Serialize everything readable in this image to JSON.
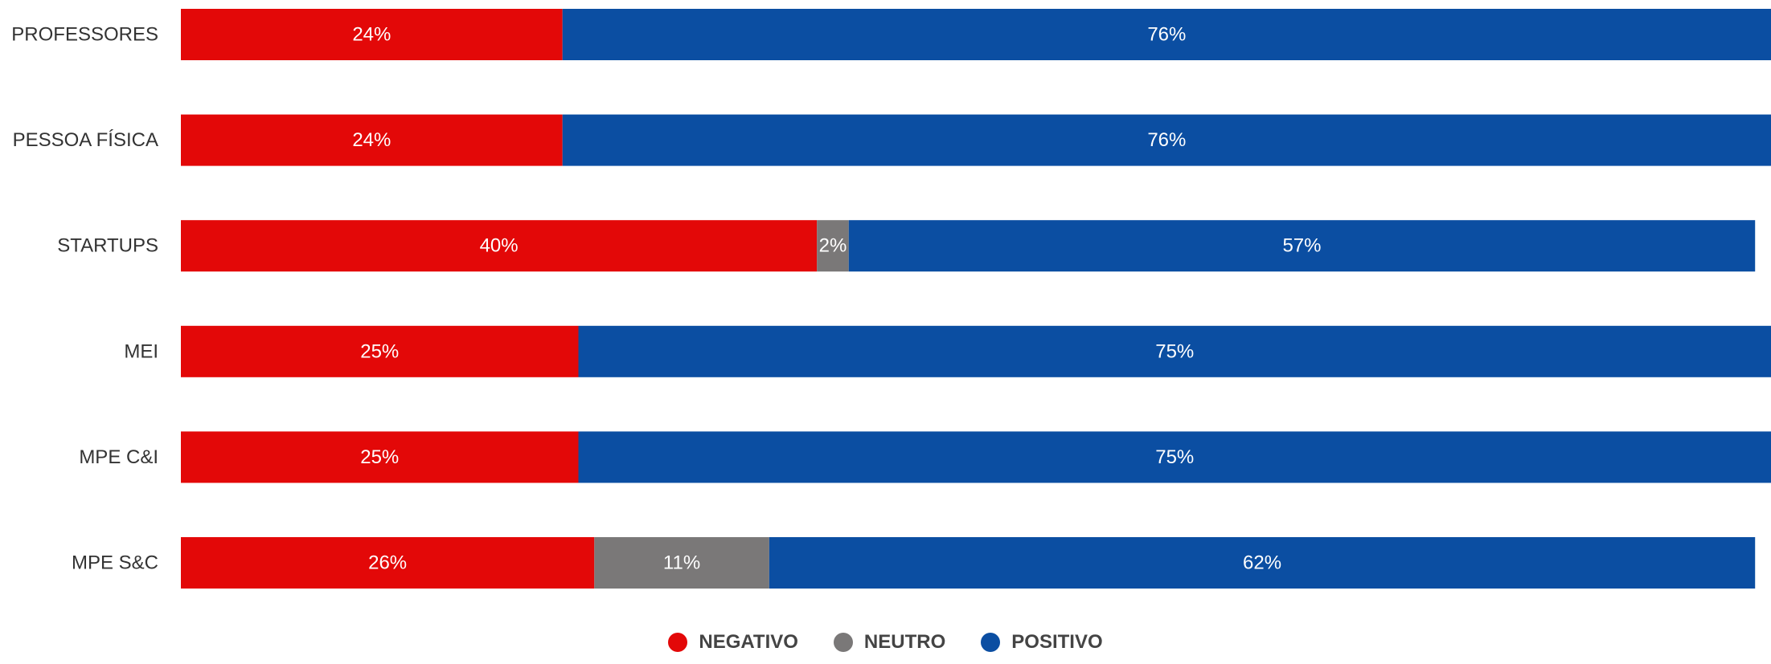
{
  "chart_data": {
    "type": "bar",
    "orientation": "horizontal",
    "stacked": true,
    "categories": [
      "PROFESSORES",
      "PESSOA FÍSICA",
      "STARTUPS",
      "MEI",
      "MPE C&I",
      "MPE S&C"
    ],
    "series": [
      {
        "name": "NEGATIVO",
        "color": "#E30808",
        "values": [
          24,
          24,
          40,
          25,
          25,
          26
        ],
        "labels": [
          "24%",
          "24%",
          "40%",
          "25%",
          "25%",
          "26%"
        ]
      },
      {
        "name": "NEUTRO",
        "color": "#7A7878",
        "values": [
          0,
          0,
          2,
          0,
          0,
          11
        ],
        "labels": [
          "",
          "",
          "2%",
          "",
          "",
          "11%"
        ]
      },
      {
        "name": "POSITIVO",
        "color": "#0B4EA2",
        "values": [
          76,
          76,
          57,
          75,
          75,
          62
        ],
        "labels": [
          "76%",
          "76%",
          "57%",
          "75%",
          "75%",
          "62%"
        ]
      }
    ],
    "xlim": [
      0,
      100
    ],
    "grid": false,
    "legend_position": "bottom"
  }
}
